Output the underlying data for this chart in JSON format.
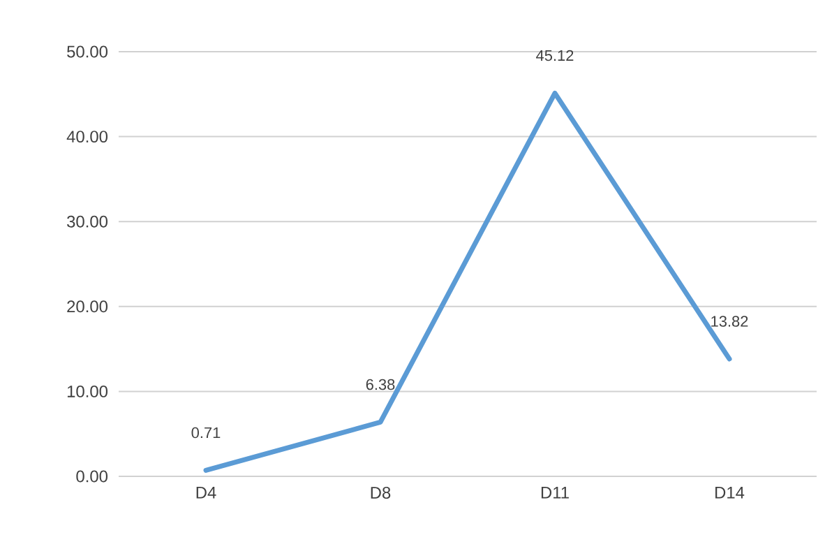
{
  "chart_data": {
    "type": "line",
    "categories": [
      "D4",
      "D8",
      "D11",
      "D14"
    ],
    "values": [
      0.71,
      6.38,
      45.12,
      13.82
    ],
    "color": "#5b9bd5",
    "ylim": [
      0,
      50
    ],
    "yticks": [
      {
        "value": 0,
        "label": "0.00"
      },
      {
        "value": 10,
        "label": "10.00"
      },
      {
        "value": 20,
        "label": "20.00"
      },
      {
        "value": 30,
        "label": "30.00"
      },
      {
        "value": 40,
        "label": "40.00"
      },
      {
        "value": 50,
        "label": "50.00"
      }
    ],
    "grid": "y",
    "marker": "none",
    "line_style": "solid",
    "data_labels": true
  }
}
